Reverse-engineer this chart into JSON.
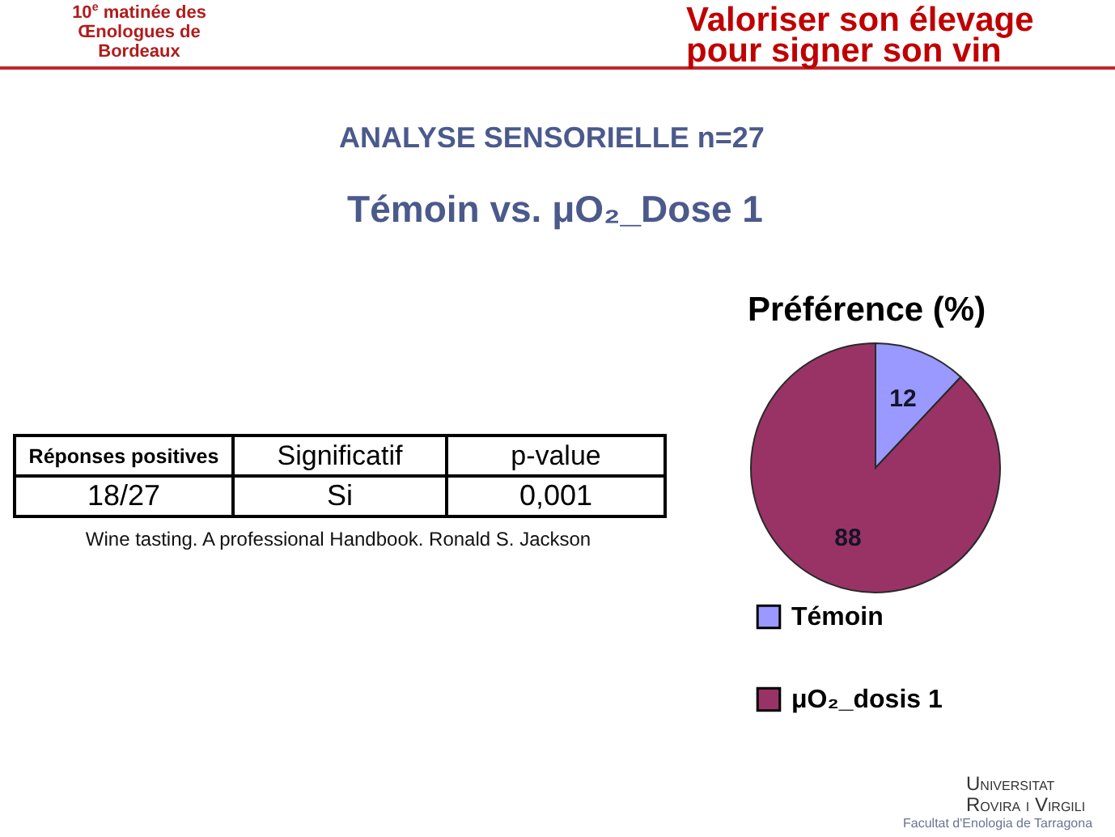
{
  "chart_data": [
    {
      "type": "other",
      "title": "ANALYSE SENSORIELLE n=27",
      "subtitle": "Témoin vs. μO₂_Dose 1",
      "annotations": [
        "10$^{e}$ matinée des Œnologues de Bordeaux",
        "Valoriser son élevage pour signer son vin",
        "Réponses positives",
        "Significatif",
        "p-value",
        "18/27",
        "Si",
        "0,001",
        "Wine tasting. A professional Handbook. Ronald S. Jackson",
        "Universitat Rovira i Virgili",
        "Facultat d'Enologia de Tarragona"
      ]
    },
    {
      "type": "pie",
      "title": "Préférence (%)",
      "categories": [
        "Témoin",
        "μO₂_dosis 1"
      ],
      "values": [
        12,
        88
      ],
      "colors": [
        "#9999ff",
        "#993366"
      ],
      "data_labels": true,
      "legend": "bottom"
    }
  ]
}
